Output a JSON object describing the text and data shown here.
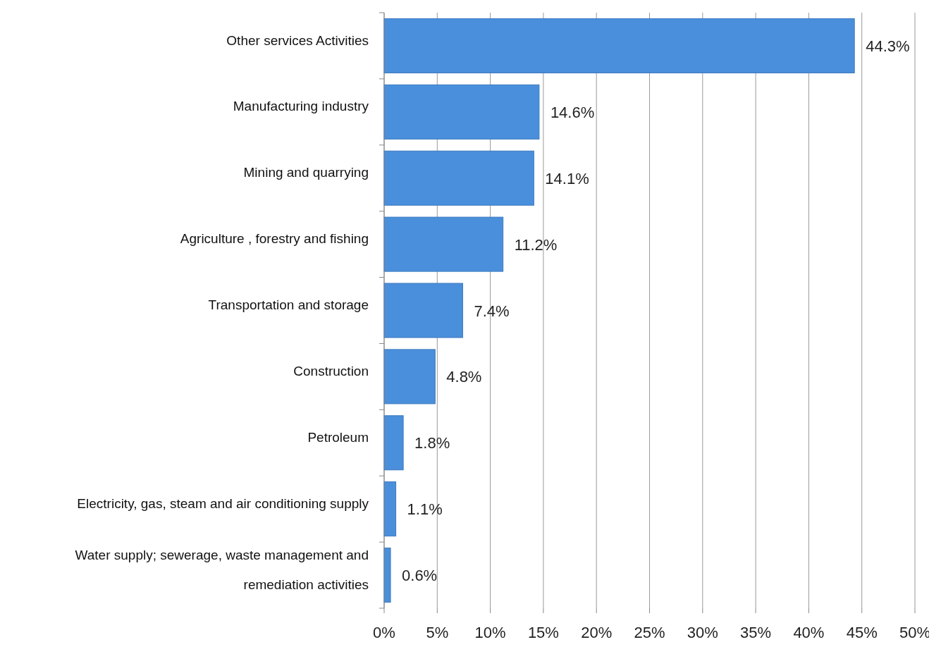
{
  "chart_data": {
    "type": "bar",
    "orientation": "horizontal",
    "categories": [
      "Other services  Activities",
      "Manufacturing industry",
      "Mining and quarrying",
      "Agriculture , forestry and fishing",
      "Transportation and storage",
      "Construction",
      "Petroleum",
      "Electricity, gas, steam and air conditioning supply",
      "Water supply; sewerage, waste management and remediation activities"
    ],
    "values": [
      44.3,
      14.6,
      14.1,
      11.2,
      7.4,
      4.8,
      1.8,
      1.1,
      0.6
    ],
    "value_labels": [
      "44.3%",
      "14.6%",
      "14.1%",
      "11.2%",
      "7.4%",
      "4.8%",
      "1.8%",
      "1.1%",
      "0.6%"
    ],
    "color": "#4a8fdb",
    "xlim": [
      0,
      50
    ],
    "xticks": [
      {
        "value": 0,
        "label": "0%"
      },
      {
        "value": 5,
        "label": "5%"
      },
      {
        "value": 10,
        "label": "10%"
      },
      {
        "value": 15,
        "label": "15%"
      },
      {
        "value": 20,
        "label": "20%"
      },
      {
        "value": 25,
        "label": "25%"
      },
      {
        "value": 30,
        "label": "30%"
      },
      {
        "value": 35,
        "label": "35%"
      },
      {
        "value": 40,
        "label": "40%"
      },
      {
        "value": 45,
        "label": "45%"
      },
      {
        "value": 50,
        "label": "50%"
      }
    ],
    "grid": "x"
  }
}
